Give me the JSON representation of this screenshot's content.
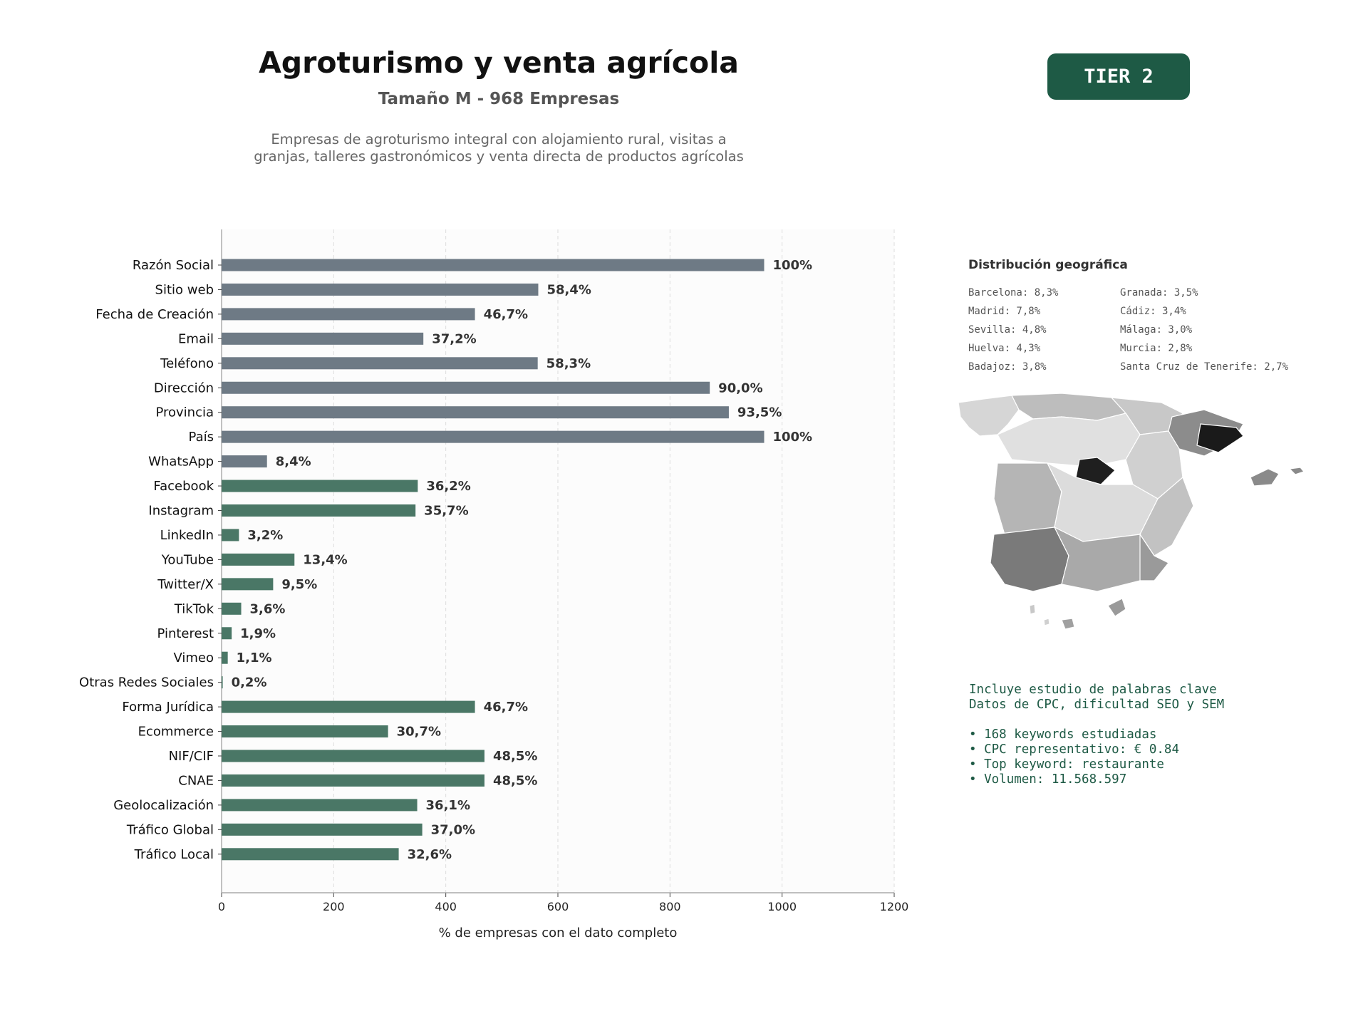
{
  "header": {
    "title": "Agroturismo y venta agrícola",
    "subtitle": "Tamaño M - 968 Empresas",
    "description_line1": "Empresas de agroturismo integral con alojamiento rural, visitas a",
    "description_line2": "granjas, talleres gastronómicos y venta directa de productos agrícolas",
    "tier": "TIER 2"
  },
  "colors": {
    "gray_bar": "#6e7a85",
    "green_bar": "#4a7766",
    "accent": "#1e5a45"
  },
  "chart_data": {
    "type": "bar",
    "orientation": "horizontal",
    "categories": [
      "Razón Social",
      "Sitio web",
      "Fecha de Creación",
      "Email",
      "Teléfono",
      "Dirección",
      "Provincia",
      "País",
      "WhatsApp",
      "Facebook",
      "Instagram",
      "LinkedIn",
      "YouTube",
      "Twitter/X",
      "TikTok",
      "Pinterest",
      "Vimeo",
      "Otras Redes Sociales",
      "Forma Jurídica",
      "Ecommerce",
      "NIF/CIF",
      "CNAE",
      "Geolocalización",
      "Tráfico Global",
      "Tráfico Local"
    ],
    "values": [
      968,
      565,
      452,
      360,
      564,
      871,
      905,
      968,
      81,
      350,
      346,
      31,
      130,
      92,
      35,
      18,
      11,
      2,
      452,
      297,
      469,
      469,
      349,
      358,
      316
    ],
    "data_labels": [
      "100%",
      "58,4%",
      "46,7%",
      "37,2%",
      "58,3%",
      "90,0%",
      "93,5%",
      "100%",
      "8,4%",
      "36,2%",
      "35,7%",
      "3,2%",
      "13,4%",
      "9,5%",
      "3,6%",
      "1,9%",
      "1,1%",
      "0,2%",
      "46,7%",
      "30,7%",
      "48,5%",
      "48,5%",
      "36,1%",
      "37,0%",
      "32,6%"
    ],
    "bar_colors": [
      "gray",
      "gray",
      "gray",
      "gray",
      "gray",
      "gray",
      "gray",
      "gray",
      "gray",
      "green",
      "green",
      "green",
      "green",
      "green",
      "green",
      "green",
      "green",
      "green",
      "green",
      "green",
      "green",
      "green",
      "green",
      "green",
      "green"
    ],
    "xlabel": "% de empresas con el dato completo",
    "xticks": [
      0,
      200,
      400,
      600,
      800,
      1000,
      1200
    ],
    "xlim": [
      0,
      1200
    ],
    "grid": "vertical dashed"
  },
  "geo": {
    "title": "Distribución geográfica",
    "col1": [
      "Barcelona: 8,3%",
      "Madrid: 7,8%",
      "Sevilla: 4,8%",
      "Huelva: 4,3%",
      "Badajoz: 3,8%"
    ],
    "col2": [
      "Granada: 3,5%",
      "Cádiz: 3,4%",
      "Málaga: 3,0%",
      "Murcia: 2,8%",
      "Santa Cruz de Tenerife: 2,7%"
    ]
  },
  "keywords": {
    "line1": "Incluye estudio de palabras clave",
    "line2": "Datos de CPC, dificultad SEO y SEM",
    "bullets": [
      "• 168 keywords estudiadas",
      "• CPC representativo: € 0.84",
      "• Top keyword: restaurante",
      "• Volumen: 11.568.597"
    ]
  }
}
